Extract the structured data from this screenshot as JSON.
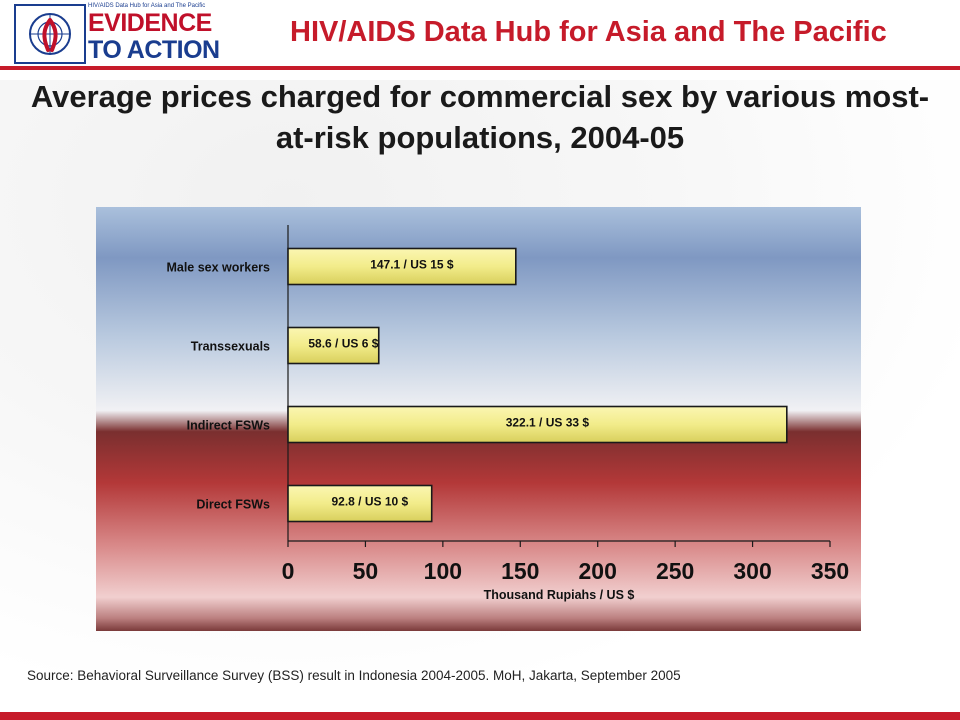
{
  "header": {
    "logo_small": "HIV/AIDS Data Hub for Asia and The Pacific",
    "logo_line1": "EVIDENCE",
    "logo_line2": "TO ACTION",
    "hub_title": "HIV/AIDS Data Hub for Asia and The Pacific"
  },
  "title": "Average prices charged for commercial sex by various most-at-risk populations, 2004-05",
  "source": "Source: Behavioral Surveillance Survey (BSS) result in Indonesia 2004-2005. MoH, Jakarta, September 2005",
  "colors": {
    "brand_red": "#c61b2a",
    "brand_blue": "#1a3d8f",
    "bar_fill": "#f2ec8a",
    "bar_border": "#1a1a1a"
  },
  "chart_data": {
    "type": "bar",
    "orientation": "horizontal",
    "categories": [
      "Male sex workers",
      "Transsexuals",
      "Indirect FSWs",
      "Direct FSWs"
    ],
    "values": [
      147.1,
      58.6,
      322.1,
      92.8
    ],
    "data_labels": [
      "147.1 / US 15 $",
      "58.6 / US 6 $",
      "322.1 / US 33 $",
      "92.8 / US 10 $"
    ],
    "xlabel": "Thousand Rupiahs / US $",
    "ylabel": "",
    "xlim": [
      0,
      350
    ],
    "xticks": [
      0,
      50,
      100,
      150,
      200,
      250,
      300,
      350
    ],
    "grid": false,
    "legend": "none"
  }
}
